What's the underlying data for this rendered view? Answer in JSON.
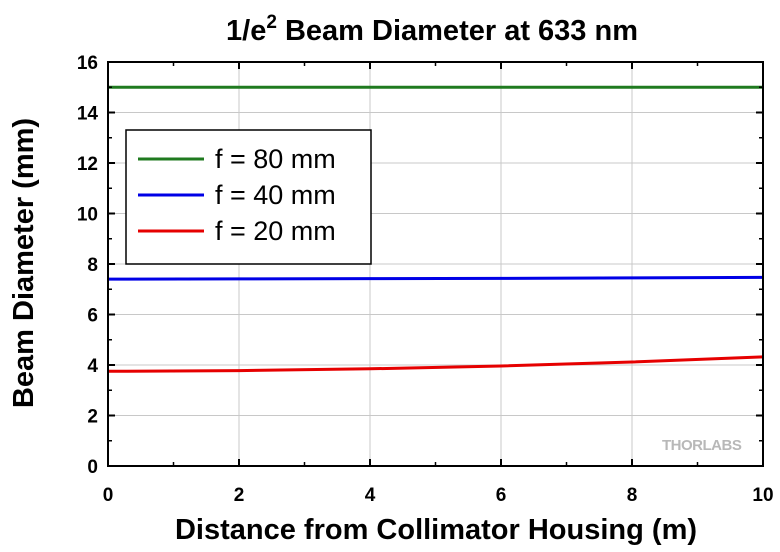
{
  "chart_data": {
    "type": "line",
    "title_main": "1/e",
    "title_sup": "2",
    "title_rest": " Beam Diameter at 633 nm",
    "xlabel": "Distance from Collimator Housing (m)",
    "ylabel": "Beam Diameter (mm)",
    "xlim": [
      0,
      10
    ],
    "ylim": [
      0,
      16
    ],
    "xticks": [
      0,
      2,
      4,
      6,
      8,
      10
    ],
    "yticks": [
      0,
      2,
      4,
      6,
      8,
      10,
      12,
      14,
      16
    ],
    "grid": true,
    "legend_position": "upper-left",
    "series": [
      {
        "name": "f = 80 mm",
        "color": "#1f7a1f",
        "x": [
          0,
          2,
          4,
          6,
          8,
          10
        ],
        "y": [
          15.0,
          15.0,
          15.0,
          15.0,
          15.0,
          15.0
        ]
      },
      {
        "name": "f = 40 mm",
        "color": "#0000e6",
        "x": [
          0,
          2,
          4,
          6,
          8,
          10
        ],
        "y": [
          7.4,
          7.41,
          7.42,
          7.43,
          7.45,
          7.47
        ]
      },
      {
        "name": "f = 20 mm",
        "color": "#e60000",
        "x": [
          0,
          2,
          4,
          6,
          8,
          10
        ],
        "y": [
          3.75,
          3.78,
          3.85,
          3.96,
          4.12,
          4.32
        ]
      }
    ],
    "watermark": "THORLABS"
  }
}
